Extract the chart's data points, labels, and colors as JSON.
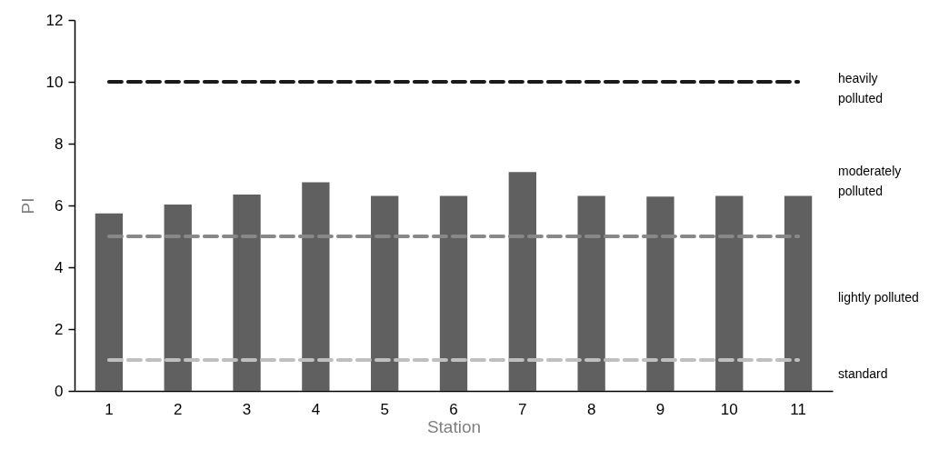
{
  "chart_data": {
    "type": "bar",
    "xlabel": "Station",
    "ylabel": "PI",
    "categories": [
      "1",
      "2",
      "3",
      "4",
      "5",
      "6",
      "7",
      "8",
      "9",
      "10",
      "11"
    ],
    "values": [
      5.74,
      6.03,
      6.35,
      6.75,
      6.31,
      6.31,
      7.08,
      6.31,
      6.29,
      6.31,
      6.31
    ],
    "color": "#606060",
    "ylim": [
      0,
      12
    ],
    "yticks": [
      0,
      2,
      4,
      6,
      8,
      10,
      12
    ],
    "grid": false,
    "ref_lines": [
      {
        "axis": "y",
        "value": 10,
        "color": "#1a1a1a",
        "line_style": "dashed"
      },
      {
        "axis": "y",
        "value": 5,
        "color": "#888888",
        "line_style": "dashed"
      },
      {
        "axis": "y",
        "value": 1,
        "color": "#bfbfbf",
        "line_style": "dashed"
      }
    ],
    "annotations": [
      "heavily\npolluted",
      "moderately\npolluted",
      "lightly polluted",
      "standard"
    ]
  }
}
